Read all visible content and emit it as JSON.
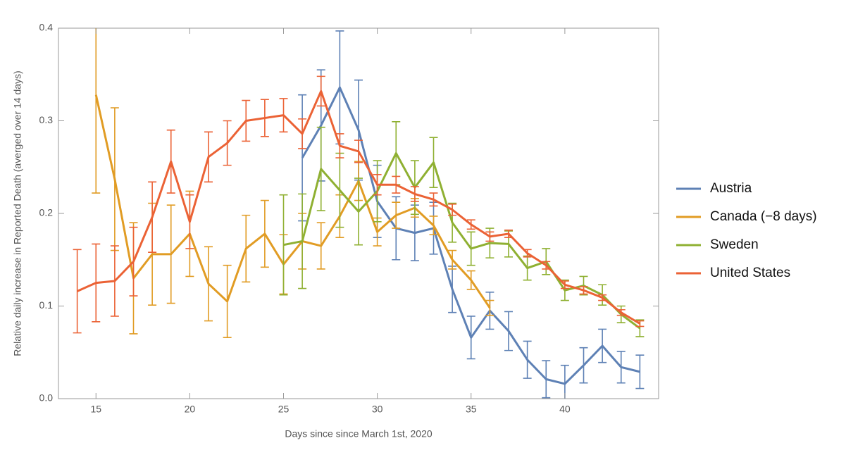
{
  "chart_data": {
    "type": "line",
    "xlabel": "Days since since March 1st, 2020",
    "ylabel": "Relative daily increase in Reported Death (averged over 14 days)",
    "xlim": [
      13,
      45
    ],
    "ylim": [
      0,
      0.4
    ],
    "xticks": [
      15,
      20,
      25,
      30,
      35,
      40
    ],
    "yticks": [
      {
        "value": 0,
        "label": "0.0"
      },
      0.1,
      0.2,
      0.3,
      0.4
    ],
    "legend": "right",
    "series": [
      {
        "name": "Austria",
        "color": "#5e81b5",
        "x": [
          26,
          27,
          28,
          29,
          30,
          31,
          32,
          33,
          34,
          35,
          36,
          37,
          38,
          39,
          40,
          41,
          42,
          43,
          44
        ],
        "values": [
          0.26,
          0.295,
          0.336,
          0.29,
          0.213,
          0.184,
          0.179,
          0.184,
          0.118,
          0.066,
          0.095,
          0.073,
          0.042,
          0.021,
          0.016,
          0.036,
          0.057,
          0.034,
          0.029
        ],
        "errors": [
          0.068,
          0.06,
          0.061,
          0.054,
          0.039,
          0.034,
          0.03,
          0.028,
          0.025,
          0.023,
          0.02,
          0.021,
          0.02,
          0.02,
          0.02,
          0.019,
          0.018,
          0.017,
          0.018
        ]
      },
      {
        "name": "Canada (−8 days)",
        "color": "#e19c24",
        "x": [
          15,
          16,
          17,
          18,
          19,
          20,
          21,
          22,
          23,
          24,
          25,
          26,
          27,
          28,
          29,
          30,
          31,
          32,
          33,
          34,
          35,
          36
        ],
        "values": [
          0.328,
          0.237,
          0.13,
          0.156,
          0.156,
          0.178,
          0.124,
          0.105,
          0.162,
          0.178,
          0.145,
          0.17,
          0.165,
          0.197,
          0.235,
          0.18,
          0.198,
          0.206,
          0.187,
          0.15,
          0.128,
          0.098
        ],
        "errors": [
          0.106,
          0.077,
          0.06,
          0.055,
          0.053,
          0.046,
          0.04,
          0.039,
          0.036,
          0.036,
          0.032,
          0.03,
          0.025,
          0.023,
          0.021,
          0.015,
          0.014,
          0.01,
          0.01,
          0.01,
          0.01,
          0.008
        ]
      },
      {
        "name": "Sweden",
        "color": "#8fb032",
        "x": [
          25,
          26,
          27,
          28,
          29,
          30,
          31,
          32,
          33,
          34,
          35,
          36,
          37,
          38,
          39,
          40,
          41,
          42,
          43,
          44
        ],
        "values": [
          0.166,
          0.17,
          0.248,
          0.225,
          0.202,
          0.224,
          0.265,
          0.228,
          0.255,
          0.19,
          0.162,
          0.168,
          0.167,
          0.141,
          0.148,
          0.117,
          0.122,
          0.112,
          0.091,
          0.076
        ],
        "errors": [
          0.054,
          0.051,
          0.045,
          0.04,
          0.036,
          0.033,
          0.034,
          0.029,
          0.027,
          0.021,
          0.018,
          0.016,
          0.014,
          0.013,
          0.014,
          0.011,
          0.01,
          0.011,
          0.009,
          0.009
        ]
      },
      {
        "name": "United States",
        "color": "#eb6235",
        "x": [
          14,
          15,
          16,
          17,
          18,
          19,
          20,
          21,
          22,
          23,
          24,
          25,
          26,
          27,
          28,
          29,
          30,
          31,
          32,
          33,
          34,
          35,
          36,
          37,
          38,
          39,
          40,
          41,
          42,
          43,
          44
        ],
        "values": [
          0.116,
          0.125,
          0.127,
          0.148,
          0.196,
          0.256,
          0.191,
          0.261,
          0.276,
          0.3,
          0.303,
          0.306,
          0.286,
          0.332,
          0.273,
          0.267,
          0.231,
          0.231,
          0.221,
          0.215,
          0.204,
          0.188,
          0.175,
          0.178,
          0.157,
          0.144,
          0.123,
          0.117,
          0.109,
          0.093,
          0.081
        ],
        "errors": [
          0.045,
          0.042,
          0.038,
          0.037,
          0.038,
          0.034,
          0.029,
          0.027,
          0.024,
          0.022,
          0.02,
          0.018,
          0.016,
          0.016,
          0.013,
          0.012,
          0.011,
          0.009,
          0.008,
          0.007,
          0.006,
          0.005,
          0.005,
          0.004,
          0.004,
          0.004,
          0.004,
          0.004,
          0.003,
          0.003,
          0.003
        ]
      }
    ]
  }
}
